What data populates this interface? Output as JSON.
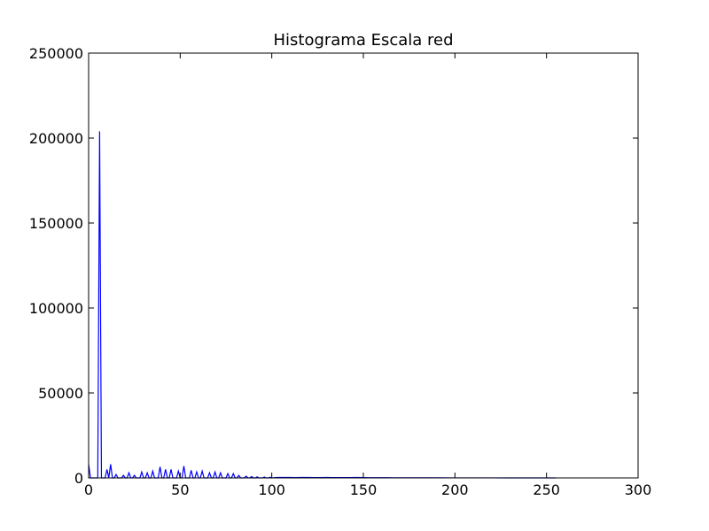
{
  "chart_data": {
    "type": "line",
    "title": "Histograma Escala red",
    "xlabel": "",
    "ylabel": "",
    "xlim": [
      0,
      300
    ],
    "ylim": [
      0,
      250000
    ],
    "xticks": [
      0,
      50,
      100,
      150,
      200,
      250,
      300
    ],
    "yticks": [
      0,
      50000,
      100000,
      150000,
      200000,
      250000
    ],
    "grid": false,
    "line_color": "#0000ff",
    "series": [
      {
        "x": [
          0,
          1,
          2,
          3,
          4,
          5,
          6,
          7,
          8,
          9,
          10,
          11,
          12,
          13,
          14,
          15,
          16,
          17,
          18,
          19,
          20,
          21,
          22,
          23,
          24,
          25,
          26,
          27,
          28,
          29,
          30,
          31,
          32,
          33,
          34,
          35,
          36,
          37,
          38,
          39,
          40,
          41,
          42,
          43,
          44,
          45,
          46,
          47,
          48,
          49,
          50,
          51,
          52,
          53,
          54,
          55,
          56,
          57,
          58,
          59,
          60,
          61,
          62,
          63,
          64,
          65,
          66,
          67,
          68,
          69,
          70,
          71,
          72,
          73,
          74,
          75,
          76,
          77,
          78,
          79,
          80,
          81,
          82,
          83,
          84,
          85,
          86,
          87,
          88,
          89,
          90,
          91,
          92,
          93,
          94,
          95,
          96,
          97,
          98,
          99,
          100,
          103,
          106,
          110,
          113,
          116,
          120,
          123,
          126,
          130,
          133,
          136,
          140,
          143,
          146,
          150,
          153,
          156,
          160,
          163,
          166,
          170,
          173,
          176,
          180,
          190,
          200,
          210,
          220,
          230,
          240,
          250,
          255
        ],
        "y": [
          8000,
          0,
          0,
          0,
          0,
          0,
          204000,
          0,
          0,
          0,
          5000,
          0,
          8000,
          0,
          0,
          2000,
          0,
          0,
          0,
          1500,
          0,
          0,
          3000,
          0,
          0,
          1500,
          0,
          0,
          0,
          3500,
          0,
          0,
          3000,
          0,
          0,
          4000,
          0,
          0,
          0,
          6500,
          0,
          0,
          5000,
          0,
          0,
          5000,
          0,
          0,
          0,
          4000,
          0,
          0,
          7000,
          0,
          0,
          0,
          4500,
          0,
          0,
          3500,
          0,
          0,
          4000,
          0,
          0,
          0,
          3000,
          0,
          0,
          3500,
          0,
          0,
          3000,
          0,
          0,
          0,
          2500,
          0,
          0,
          2500,
          0,
          0,
          1500,
          0,
          0,
          0,
          1000,
          0,
          0,
          800,
          0,
          0,
          600,
          0,
          0,
          0,
          500,
          0,
          0,
          400,
          0,
          300,
          300,
          300,
          200,
          300,
          300,
          200,
          200,
          300,
          200,
          200,
          200,
          200,
          300,
          200,
          150,
          150,
          150,
          120,
          100,
          100,
          80,
          80,
          60,
          50,
          40,
          30,
          20,
          10,
          0,
          0,
          0
        ]
      }
    ]
  }
}
